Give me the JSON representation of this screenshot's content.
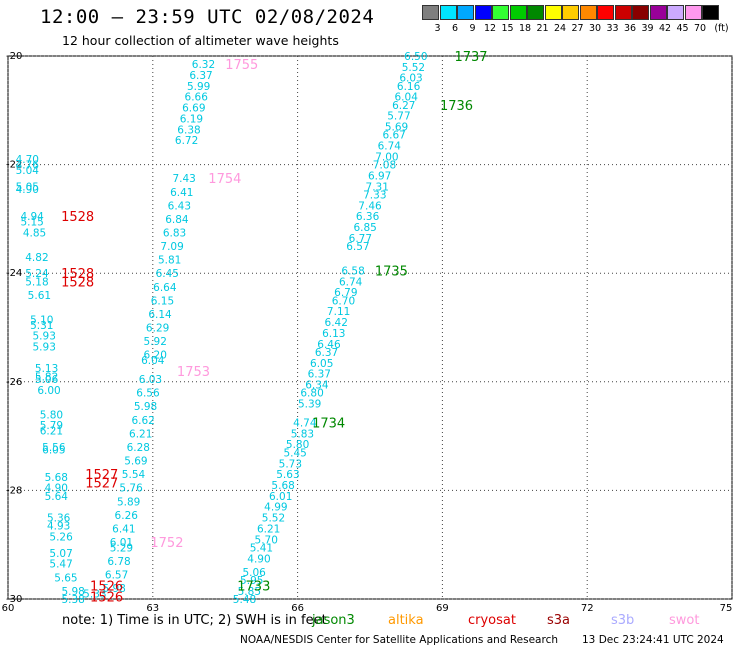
{
  "header": {
    "title": "12:00 — 23:59 UTC 02/08/2024",
    "subtitle": "12 hour collection of altimeter wave heights"
  },
  "legend": {
    "unit": "(ft)",
    "bins": [
      {
        "label": "3",
        "color": "#7f7f7f"
      },
      {
        "label": "6",
        "color": "#00e5ff"
      },
      {
        "label": "9",
        "color": "#00a8ff"
      },
      {
        "label": "12",
        "color": "#0000ff"
      },
      {
        "label": "15",
        "color": "#33ff33"
      },
      {
        "label": "18",
        "color": "#00cc00"
      },
      {
        "label": "21",
        "color": "#008800"
      },
      {
        "label": "24",
        "color": "#ffff00"
      },
      {
        "label": "27",
        "color": "#ffcc00"
      },
      {
        "label": "30",
        "color": "#ff8800"
      },
      {
        "label": "33",
        "color": "#ff0000"
      },
      {
        "label": "36",
        "color": "#cc0000"
      },
      {
        "label": "39",
        "color": "#880000"
      },
      {
        "label": "42",
        "color": "#990099"
      },
      {
        "label": "45",
        "color": "#ccaaff"
      },
      {
        "label": "70",
        "color": "#ff99ee"
      },
      {
        "label": "",
        "color": "#000000"
      }
    ]
  },
  "axes": {
    "lon_ticks": [
      "60",
      "63",
      "66",
      "69",
      "72",
      "75"
    ],
    "lat_ticks": [
      "-20",
      "-22",
      "-24",
      "-26",
      "-28",
      "-30"
    ],
    "lon_range": [
      60,
      75
    ],
    "lat_range": [
      -30,
      -20
    ]
  },
  "colors": {
    "swh": "#00c8e0",
    "jason3": "#008800",
    "altika": "#ff9900",
    "cryosat": "#dd0000",
    "s3a": "#990000",
    "s3b": "#aaaaff",
    "swot": "#ff99dd"
  },
  "tracks": [
    {
      "id": "t1737",
      "sat": "jason3",
      "time_labels": [
        {
          "text": "1737",
          "lon": 69.25,
          "lat": -20.0
        },
        {
          "text": "1736",
          "lon": 68.95,
          "lat": -20.9
        },
        {
          "text": "1735",
          "lon": 67.6,
          "lat": -23.95
        },
        {
          "text": "1734",
          "lon": 66.3,
          "lat": -26.75
        },
        {
          "text": "1733",
          "lon": 64.75,
          "lat": -29.75
        }
      ],
      "points": [
        {
          "lon": 68.45,
          "lat": -20.0,
          "v": "6.50"
        },
        {
          "lon": 68.4,
          "lat": -20.2,
          "v": "5.52"
        },
        {
          "lon": 68.35,
          "lat": -20.4,
          "v": "6.03"
        },
        {
          "lon": 68.3,
          "lat": -20.55,
          "v": "6.16"
        },
        {
          "lon": 68.25,
          "lat": -20.75,
          "v": "6.04"
        },
        {
          "lon": 68.2,
          "lat": -20.9,
          "v": "6.27"
        },
        {
          "lon": 68.1,
          "lat": -21.1,
          "v": "5.77"
        },
        {
          "lon": 68.05,
          "lat": -21.3,
          "v": "5.69"
        },
        {
          "lon": 68.0,
          "lat": -21.45,
          "v": "6.67"
        },
        {
          "lon": 67.9,
          "lat": -21.65,
          "v": "6.74"
        },
        {
          "lon": 67.85,
          "lat": -21.85,
          "v": "7.00"
        },
        {
          "lon": 67.8,
          "lat": -22.0,
          "v": "7.08"
        },
        {
          "lon": 67.7,
          "lat": -22.2,
          "v": "6.97"
        },
        {
          "lon": 67.65,
          "lat": -22.4,
          "v": "7.31"
        },
        {
          "lon": 67.6,
          "lat": -22.55,
          "v": "7.33"
        },
        {
          "lon": 67.5,
          "lat": -22.75,
          "v": "7.46"
        },
        {
          "lon": 67.45,
          "lat": -22.95,
          "v": "6.36"
        },
        {
          "lon": 67.4,
          "lat": -23.15,
          "v": "6.85"
        },
        {
          "lon": 67.3,
          "lat": -23.35,
          "v": "6.77"
        },
        {
          "lon": 67.25,
          "lat": -23.5,
          "v": "6.57"
        },
        {
          "lon": 67.15,
          "lat": -23.95,
          "v": "6.58"
        },
        {
          "lon": 67.1,
          "lat": -24.15,
          "v": "6.74"
        },
        {
          "lon": 67.0,
          "lat": -24.35,
          "v": "6.79"
        },
        {
          "lon": 66.95,
          "lat": -24.5,
          "v": "6.70"
        },
        {
          "lon": 66.85,
          "lat": -24.7,
          "v": "7.11"
        },
        {
          "lon": 66.8,
          "lat": -24.9,
          "v": "6.42"
        },
        {
          "lon": 66.75,
          "lat": -25.1,
          "v": "6.13"
        },
        {
          "lon": 66.65,
          "lat": -25.3,
          "v": "6.46"
        },
        {
          "lon": 66.6,
          "lat": -25.45,
          "v": "6.37"
        },
        {
          "lon": 66.5,
          "lat": -25.65,
          "v": "6.05"
        },
        {
          "lon": 66.45,
          "lat": -25.85,
          "v": "6.37"
        },
        {
          "lon": 66.4,
          "lat": -26.05,
          "v": "6.34"
        },
        {
          "lon": 66.3,
          "lat": -26.2,
          "v": "6.80"
        },
        {
          "lon": 66.25,
          "lat": -26.4,
          "v": "5.39"
        },
        {
          "lon": 66.15,
          "lat": -26.75,
          "v": "4.74"
        },
        {
          "lon": 66.1,
          "lat": -26.95,
          "v": "5.83"
        },
        {
          "lon": 66.0,
          "lat": -27.15,
          "v": "5.80"
        },
        {
          "lon": 65.95,
          "lat": -27.3,
          "v": "5.45"
        },
        {
          "lon": 65.85,
          "lat": -27.5,
          "v": "5.73"
        },
        {
          "lon": 65.8,
          "lat": -27.7,
          "v": "5.63"
        },
        {
          "lon": 65.7,
          "lat": -27.9,
          "v": "5.68"
        },
        {
          "lon": 65.65,
          "lat": -28.1,
          "v": "6.01"
        },
        {
          "lon": 65.55,
          "lat": -28.3,
          "v": "4.99"
        },
        {
          "lon": 65.5,
          "lat": -28.5,
          "v": "5.52"
        },
        {
          "lon": 65.4,
          "lat": -28.7,
          "v": "6.21"
        },
        {
          "lon": 65.35,
          "lat": -28.9,
          "v": "5.70"
        },
        {
          "lon": 65.25,
          "lat": -29.05,
          "v": "5.41"
        },
        {
          "lon": 65.2,
          "lat": -29.25,
          "v": "4.90"
        },
        {
          "lon": 65.1,
          "lat": -29.5,
          "v": "5.06"
        },
        {
          "lon": 65.05,
          "lat": -29.65,
          "v": "5.95"
        },
        {
          "lon": 65.0,
          "lat": -29.85,
          "v": "5.85"
        },
        {
          "lon": 64.9,
          "lat": -30.0,
          "v": "5.48"
        }
      ]
    },
    {
      "id": "t1755",
      "sat": "swot",
      "time_labels": [
        {
          "text": "1755",
          "lon": 64.5,
          "lat": -20.15
        },
        {
          "text": "1754",
          "lon": 64.15,
          "lat": -22.25
        },
        {
          "text": "1753",
          "lon": 63.5,
          "lat": -25.8
        },
        {
          "text": "1752",
          "lon": 62.95,
          "lat": -28.95
        }
      ],
      "points": [
        {
          "lon": 64.05,
          "lat": -20.15,
          "v": "6.32"
        },
        {
          "lon": 64.0,
          "lat": -20.35,
          "v": "6.37"
        },
        {
          "lon": 63.95,
          "lat": -20.55,
          "v": "5.99"
        },
        {
          "lon": 63.9,
          "lat": -20.75,
          "v": "6.66"
        },
        {
          "lon": 63.85,
          "lat": -20.95,
          "v": "6.69"
        },
        {
          "lon": 63.8,
          "lat": -21.15,
          "v": "6.19"
        },
        {
          "lon": 63.75,
          "lat": -21.35,
          "v": "6.38"
        },
        {
          "lon": 63.7,
          "lat": -21.55,
          "v": "6.72"
        },
        {
          "lon": 63.65,
          "lat": -22.25,
          "v": "7.43"
        },
        {
          "lon": 63.6,
          "lat": -22.5,
          "v": "6.41"
        },
        {
          "lon": 63.55,
          "lat": -22.75,
          "v": "6.43"
        },
        {
          "lon": 63.5,
          "lat": -23.0,
          "v": "6.84"
        },
        {
          "lon": 63.45,
          "lat": -23.25,
          "v": "6.83"
        },
        {
          "lon": 63.4,
          "lat": -23.5,
          "v": "7.09"
        },
        {
          "lon": 63.35,
          "lat": -23.75,
          "v": "5.81"
        },
        {
          "lon": 63.3,
          "lat": -24.0,
          "v": "6.45"
        },
        {
          "lon": 63.25,
          "lat": -24.25,
          "v": "6.64"
        },
        {
          "lon": 63.2,
          "lat": -24.5,
          "v": "6.15"
        },
        {
          "lon": 63.15,
          "lat": -24.75,
          "v": "6.14"
        },
        {
          "lon": 63.1,
          "lat": -25.0,
          "v": "6.29"
        },
        {
          "lon": 63.05,
          "lat": -25.25,
          "v": "5.92"
        },
        {
          "lon": 63.05,
          "lat": -25.5,
          "v": "6.20"
        },
        {
          "lon": 63.0,
          "lat": -25.6,
          "v": "6.04"
        },
        {
          "lon": 62.95,
          "lat": -25.95,
          "v": "6.03"
        },
        {
          "lon": 62.9,
          "lat": -26.2,
          "v": "6.56"
        },
        {
          "lon": 62.85,
          "lat": -26.45,
          "v": "5.98"
        },
        {
          "lon": 62.8,
          "lat": -26.7,
          "v": "6.62"
        },
        {
          "lon": 62.75,
          "lat": -26.95,
          "v": "6.21"
        },
        {
          "lon": 62.7,
          "lat": -27.2,
          "v": "6.28"
        },
        {
          "lon": 62.65,
          "lat": -27.45,
          "v": "5.69"
        },
        {
          "lon": 62.6,
          "lat": -27.7,
          "v": "5.54"
        },
        {
          "lon": 62.55,
          "lat": -27.95,
          "v": "5.76"
        },
        {
          "lon": 62.5,
          "lat": -28.2,
          "v": "5.89"
        },
        {
          "lon": 62.45,
          "lat": -28.45,
          "v": "6.26"
        },
        {
          "lon": 62.4,
          "lat": -28.7,
          "v": "6.41"
        },
        {
          "lon": 62.35,
          "lat": -28.95,
          "v": "6.01"
        },
        {
          "lon": 62.35,
          "lat": -29.05,
          "v": "5.29"
        },
        {
          "lon": 62.3,
          "lat": -29.3,
          "v": "6.78"
        },
        {
          "lon": 62.25,
          "lat": -29.55,
          "v": "6.57"
        },
        {
          "lon": 62.2,
          "lat": -29.8,
          "v": "5.98"
        }
      ]
    },
    {
      "id": "t1528",
      "sat": "cryosat",
      "time_labels": [
        {
          "text": "1528",
          "lon": 61.1,
          "lat": -22.95
        },
        {
          "text": "1528",
          "lon": 61.1,
          "lat": -24.0
        },
        {
          "text": "1528",
          "lon": 61.1,
          "lat": -24.15
        },
        {
          "text": "1527",
          "lon": 61.6,
          "lat": -27.7
        },
        {
          "text": "1527",
          "lon": 61.6,
          "lat": -27.85
        },
        {
          "text": "1526",
          "lon": 61.7,
          "lat": -29.75
        },
        {
          "text": "1526",
          "lon": 61.7,
          "lat": -29.95
        }
      ],
      "points": [
        {
          "lon": 60.4,
          "lat": -21.9,
          "v": "4.70"
        },
        {
          "lon": 60.4,
          "lat": -22.0,
          "v": "4.76"
        },
        {
          "lon": 60.4,
          "lat": -22.1,
          "v": "5.04"
        },
        {
          "lon": 60.4,
          "lat": -22.4,
          "v": "5.05"
        },
        {
          "lon": 60.4,
          "lat": -22.45,
          "v": "4.90"
        },
        {
          "lon": 60.5,
          "lat": -22.95,
          "v": "4.94"
        },
        {
          "lon": 60.5,
          "lat": -23.05,
          "v": "5.15"
        },
        {
          "lon": 60.55,
          "lat": -23.25,
          "v": "4.85"
        },
        {
          "lon": 60.6,
          "lat": -23.7,
          "v": "4.82"
        },
        {
          "lon": 60.6,
          "lat": -24.0,
          "v": "5.24"
        },
        {
          "lon": 60.6,
          "lat": -24.15,
          "v": "5.18"
        },
        {
          "lon": 60.65,
          "lat": -24.4,
          "v": "5.61"
        },
        {
          "lon": 60.7,
          "lat": -24.85,
          "v": "5.10"
        },
        {
          "lon": 60.7,
          "lat": -24.95,
          "v": "5.31"
        },
        {
          "lon": 60.75,
          "lat": -25.15,
          "v": "5.93"
        },
        {
          "lon": 60.75,
          "lat": -25.35,
          "v": "5.93"
        },
        {
          "lon": 60.8,
          "lat": -25.75,
          "v": "5.13"
        },
        {
          "lon": 60.8,
          "lat": -25.9,
          "v": "5.82"
        },
        {
          "lon": 60.8,
          "lat": -25.95,
          "v": "5.06"
        },
        {
          "lon": 60.85,
          "lat": -26.15,
          "v": "6.00"
        },
        {
          "lon": 60.9,
          "lat": -26.6,
          "v": "5.80"
        },
        {
          "lon": 60.9,
          "lat": -26.8,
          "v": "5.79"
        },
        {
          "lon": 60.9,
          "lat": -26.9,
          "v": "6.21"
        },
        {
          "lon": 60.95,
          "lat": -27.2,
          "v": "5.56"
        },
        {
          "lon": 60.95,
          "lat": -27.25,
          "v": "6.05"
        },
        {
          "lon": 61.0,
          "lat": -27.75,
          "v": "5.68"
        },
        {
          "lon": 61.0,
          "lat": -27.95,
          "v": "4.90"
        },
        {
          "lon": 61.0,
          "lat": -28.1,
          "v": "5.64"
        },
        {
          "lon": 61.05,
          "lat": -28.5,
          "v": "5.36"
        },
        {
          "lon": 61.05,
          "lat": -28.65,
          "v": "4.93"
        },
        {
          "lon": 61.1,
          "lat": -28.85,
          "v": "5.26"
        },
        {
          "lon": 61.1,
          "lat": -29.15,
          "v": "5.07"
        },
        {
          "lon": 61.1,
          "lat": -29.35,
          "v": "5.47"
        },
        {
          "lon": 61.2,
          "lat": -29.6,
          "v": "5.65"
        },
        {
          "lon": 61.35,
          "lat": -29.85,
          "v": "5.98"
        },
        {
          "lon": 61.35,
          "lat": -30.0,
          "v": "5.38"
        },
        {
          "lon": 61.8,
          "lat": -29.9,
          "v": "5.33"
        }
      ]
    }
  ],
  "note": {
    "text": "note:  1) Time is in UTC; 2) SWH is in feet",
    "sats": [
      {
        "label": "jason3",
        "key": "jason3"
      },
      {
        "label": "altika",
        "key": "altika"
      },
      {
        "label": "cryosat",
        "key": "cryosat"
      },
      {
        "label": "s3a",
        "key": "s3a"
      },
      {
        "label": "s3b",
        "key": "s3b"
      },
      {
        "label": "swot",
        "key": "swot"
      }
    ]
  },
  "footer": {
    "credit": "NOAA/NESDIS Center for Satellite Applications and Research",
    "stamp": "13 Dec 23:24:41 UTC 2024"
  }
}
